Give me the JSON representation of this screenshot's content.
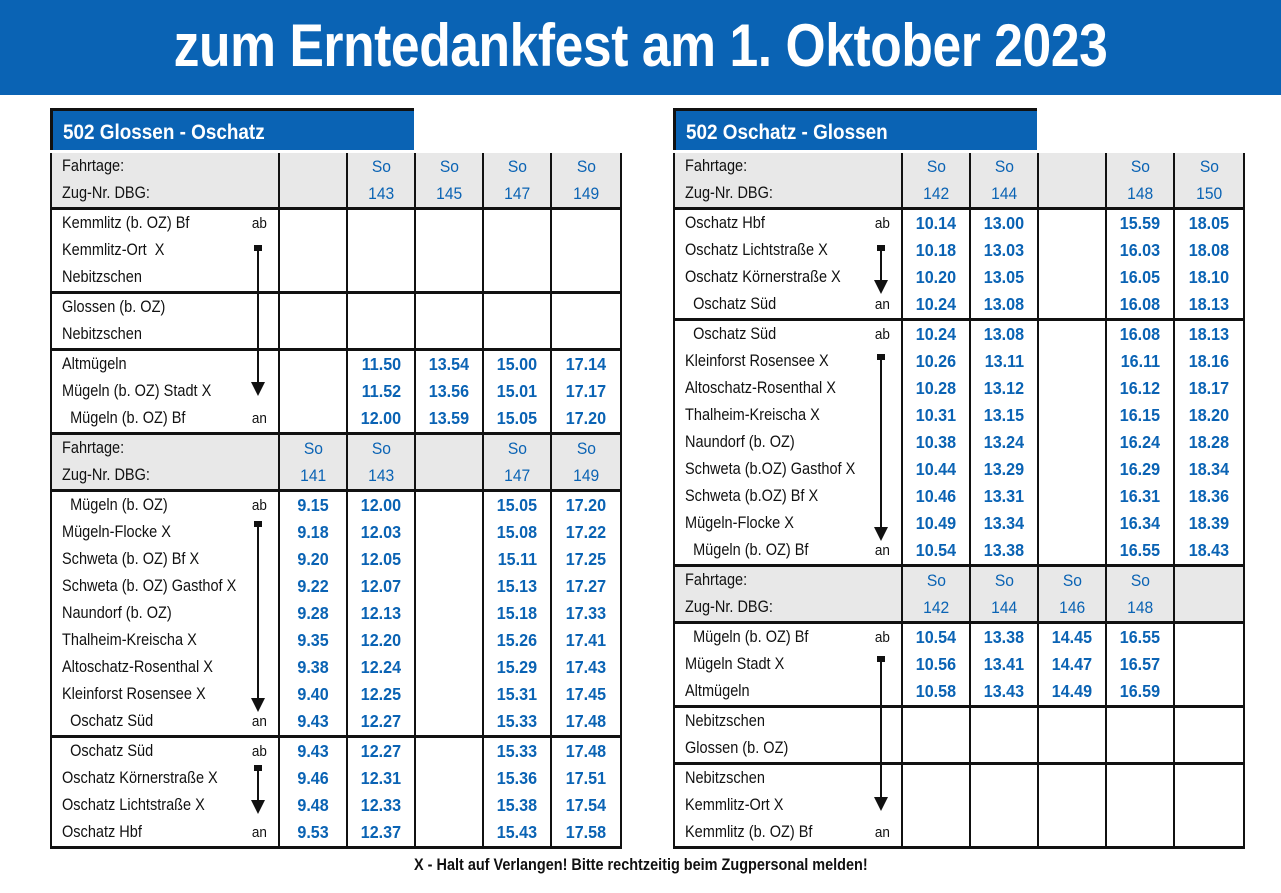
{
  "title": "zum Erntedankfest am 1. Oktober 2023",
  "footnote": "X - Halt auf Verlangen! Bitte rechtzeitig beim Zugpersonal melden!",
  "colors": {
    "brand_blue": "#0a63b4",
    "header_grey": "#e8e8e8"
  },
  "tables": [
    {
      "route": "502 Glossen - Oschatz",
      "rows": [
        {
          "type": "hdr",
          "st": "Fahrtage:",
          "c": [
            "",
            "So",
            "So",
            "So",
            "So"
          ]
        },
        {
          "type": "hdr",
          "st": "Zug-Nr. DBG:",
          "c": [
            "",
            "143",
            "145",
            "147",
            "149"
          ]
        },
        {
          "st": "Kemmlitz (b. OZ) Bf",
          "mk": "ab",
          "c": [
            "",
            "",
            "",
            "",
            ""
          ],
          "top": true
        },
        {
          "st": "Kemmlitz-Ort  X",
          "c": [
            "",
            "",
            "",
            "",
            ""
          ]
        },
        {
          "st": "Nebitzschen",
          "c": [
            "",
            "",
            "",
            "",
            ""
          ]
        },
        {
          "st": "Glossen (b. OZ)",
          "c": [
            "",
            "",
            "",
            "",
            ""
          ],
          "top": true
        },
        {
          "st": "Nebitzschen",
          "c": [
            "",
            "",
            "",
            "",
            ""
          ]
        },
        {
          "st": "Altmügeln",
          "c": [
            "",
            "11.50",
            "13.54",
            "15.00",
            "17.14"
          ],
          "top": true
        },
        {
          "st": "Mügeln (b. OZ) Stadt X",
          "c": [
            "",
            "11.52",
            "13.56",
            "15.01",
            "17.17"
          ]
        },
        {
          "st": "  Mügeln (b. OZ) Bf",
          "mk": "an",
          "c": [
            "",
            "12.00",
            "13.59",
            "15.05",
            "17.20"
          ]
        },
        {
          "type": "hdr",
          "st": "Fahrtage:",
          "c": [
            "So",
            "So",
            "",
            "So",
            "So"
          ],
          "top": true
        },
        {
          "type": "hdr",
          "st": "Zug-Nr. DBG:",
          "c": [
            "141",
            "143",
            "",
            "147",
            "149"
          ]
        },
        {
          "st": "  Mügeln (b. OZ)",
          "mk": "ab",
          "c": [
            "9.15",
            "12.00",
            "",
            "15.05",
            "17.20"
          ],
          "top": true
        },
        {
          "st": "Mügeln-Flocke X",
          "c": [
            "9.18",
            "12.03",
            "",
            "15.08",
            "17.22"
          ]
        },
        {
          "st": "Schweta (b. OZ) Bf X",
          "c": [
            "9.20",
            "12.05",
            "",
            "15.11",
            "17.25"
          ]
        },
        {
          "st": "Schweta (b. OZ) Gasthof X",
          "c": [
            "9.22",
            "12.07",
            "",
            "15.13",
            "17.27"
          ]
        },
        {
          "st": "Naundorf (b. OZ)",
          "c": [
            "9.28",
            "12.13",
            "",
            "15.18",
            "17.33"
          ]
        },
        {
          "st": "Thalheim-Kreischa X",
          "c": [
            "9.35",
            "12.20",
            "",
            "15.26",
            "17.41"
          ]
        },
        {
          "st": "Altoschatz-Rosenthal X",
          "c": [
            "9.38",
            "12.24",
            "",
            "15.29",
            "17.43"
          ]
        },
        {
          "st": "Kleinforst Rosensee X",
          "c": [
            "9.40",
            "12.25",
            "",
            "15.31",
            "17.45"
          ]
        },
        {
          "st": "  Oschatz Süd",
          "mk": "an",
          "c": [
            "9.43",
            "12.27",
            "",
            "15.33",
            "17.48"
          ]
        },
        {
          "st": "  Oschatz Süd",
          "mk": "ab",
          "c": [
            "9.43",
            "12.27",
            "",
            "15.33",
            "17.48"
          ],
          "top": true
        },
        {
          "st": "Oschatz Körnerstraße X",
          "c": [
            "9.46",
            "12.31",
            "",
            "15.36",
            "17.51"
          ]
        },
        {
          "st": "Oschatz Lichtstraße X",
          "c": [
            "9.48",
            "12.33",
            "",
            "15.38",
            "17.54"
          ]
        },
        {
          "st": "Oschatz Hbf",
          "mk": "an",
          "c": [
            "9.53",
            "12.37",
            "",
            "15.43",
            "17.58"
          ],
          "last": true
        }
      ]
    },
    {
      "route": "502 Oschatz - Glossen",
      "rows": [
        {
          "type": "hdr",
          "st": "Fahrtage:",
          "c": [
            "So",
            "So",
            "",
            "So",
            "So"
          ]
        },
        {
          "type": "hdr",
          "st": "Zug-Nr. DBG:",
          "c": [
            "142",
            "144",
            "",
            "148",
            "150"
          ]
        },
        {
          "st": "Oschatz Hbf",
          "mk": "ab",
          "c": [
            "10.14",
            "13.00",
            "",
            "15.59",
            "18.05"
          ],
          "top": true
        },
        {
          "st": "Oschatz Lichtstraße X",
          "c": [
            "10.18",
            "13.03",
            "",
            "16.03",
            "18.08"
          ]
        },
        {
          "st": "Oschatz Körnerstraße X",
          "c": [
            "10.20",
            "13.05",
            "",
            "16.05",
            "18.10"
          ]
        },
        {
          "st": "  Oschatz Süd",
          "mk": "an",
          "c": [
            "10.24",
            "13.08",
            "",
            "16.08",
            "18.13"
          ]
        },
        {
          "st": "  Oschatz Süd",
          "mk": "ab",
          "c": [
            "10.24",
            "13.08",
            "",
            "16.08",
            "18.13"
          ],
          "top": true
        },
        {
          "st": "Kleinforst Rosensee X",
          "c": [
            "10.26",
            "13.11",
            "",
            "16.11",
            "18.16"
          ]
        },
        {
          "st": "Altoschatz-Rosenthal X",
          "c": [
            "10.28",
            "13.12",
            "",
            "16.12",
            "18.17"
          ]
        },
        {
          "st": "Thalheim-Kreischa X",
          "c": [
            "10.31",
            "13.15",
            "",
            "16.15",
            "18.20"
          ]
        },
        {
          "st": "Naundorf (b. OZ)",
          "c": [
            "10.38",
            "13.24",
            "",
            "16.24",
            "18.28"
          ]
        },
        {
          "st": "Schweta (b.OZ) Gasthof X",
          "c": [
            "10.44",
            "13.29",
            "",
            "16.29",
            "18.34"
          ]
        },
        {
          "st": "Schweta (b.OZ) Bf X",
          "c": [
            "10.46",
            "13.31",
            "",
            "16.31",
            "18.36"
          ]
        },
        {
          "st": "Mügeln-Flocke X",
          "c": [
            "10.49",
            "13.34",
            "",
            "16.34",
            "18.39"
          ]
        },
        {
          "st": "  Mügeln (b. OZ) Bf",
          "mk": "an",
          "c": [
            "10.54",
            "13.38",
            "",
            "16.55",
            "18.43"
          ]
        },
        {
          "type": "hdr",
          "st": "Fahrtage:",
          "c": [
            "So",
            "So",
            "So",
            "So",
            ""
          ],
          "top": true
        },
        {
          "type": "hdr",
          "st": "Zug-Nr. DBG:",
          "c": [
            "142",
            "144",
            "146",
            "148",
            ""
          ]
        },
        {
          "st": "  Mügeln (b. OZ) Bf",
          "mk": "ab",
          "c": [
            "10.54",
            "13.38",
            "14.45",
            "16.55",
            ""
          ],
          "top": true
        },
        {
          "st": "Mügeln Stadt X",
          "c": [
            "10.56",
            "13.41",
            "14.47",
            "16.57",
            ""
          ]
        },
        {
          "st": "Altmügeln",
          "c": [
            "10.58",
            "13.43",
            "14.49",
            "16.59",
            ""
          ]
        },
        {
          "st": "Nebitzschen",
          "c": [
            "",
            "",
            "",
            "",
            ""
          ],
          "top": true
        },
        {
          "st": "Glossen (b. OZ)",
          "c": [
            "",
            "",
            "",
            "",
            ""
          ]
        },
        {
          "st": "Nebitzschen",
          "c": [
            "",
            "",
            "",
            "",
            ""
          ],
          "top": true
        },
        {
          "st": "Kemmlitz-Ort X",
          "c": [
            "",
            "",
            "",
            "",
            ""
          ]
        },
        {
          "st": "Kemmlitz (b. OZ) Bf",
          "mk": "an",
          "c": [
            "",
            "",
            "",
            "",
            ""
          ],
          "last": true
        }
      ]
    }
  ]
}
